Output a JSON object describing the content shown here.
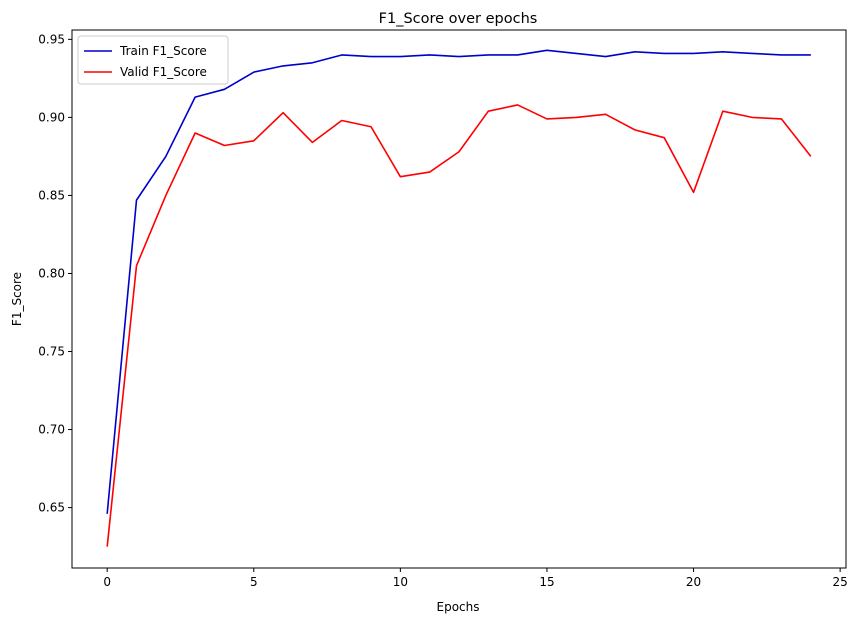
{
  "chart_data": {
    "type": "line",
    "title": "F1_Score over epochs",
    "xlabel": "Epochs",
    "ylabel": "F1_Score",
    "x": [
      0,
      1,
      2,
      3,
      4,
      5,
      6,
      7,
      8,
      9,
      10,
      11,
      12,
      13,
      14,
      15,
      16,
      17,
      18,
      19,
      20,
      21,
      22,
      23,
      24
    ],
    "xlim": [
      -1.2,
      25.2
    ],
    "ylim": [
      0.6113,
      0.956
    ],
    "xticks": [
      0,
      5,
      10,
      15,
      20,
      25
    ],
    "yticks": [
      0.65,
      0.7,
      0.75,
      0.8,
      0.85,
      0.9,
      0.95
    ],
    "ytick_labels": [
      "0.65",
      "0.70",
      "0.75",
      "0.80",
      "0.85",
      "0.90",
      "0.95"
    ],
    "grid": false,
    "legend_position": "upper-left",
    "series": [
      {
        "name": "Train F1_Score",
        "color": "#0000cc",
        "values": [
          0.646,
          0.847,
          0.875,
          0.913,
          0.918,
          0.929,
          0.933,
          0.935,
          0.94,
          0.939,
          0.939,
          0.94,
          0.939,
          0.94,
          0.94,
          0.943,
          0.941,
          0.939,
          0.942,
          0.941,
          0.941,
          0.942,
          0.941,
          0.94,
          0.94
        ]
      },
      {
        "name": "Valid F1_Score",
        "color": "#ff0000",
        "values": [
          0.625,
          0.805,
          0.85,
          0.89,
          0.882,
          0.885,
          0.903,
          0.884,
          0.898,
          0.894,
          0.862,
          0.865,
          0.878,
          0.904,
          0.908,
          0.899,
          0.9,
          0.902,
          0.892,
          0.887,
          0.852,
          0.904,
          0.9,
          0.899,
          0.875
        ]
      }
    ]
  }
}
